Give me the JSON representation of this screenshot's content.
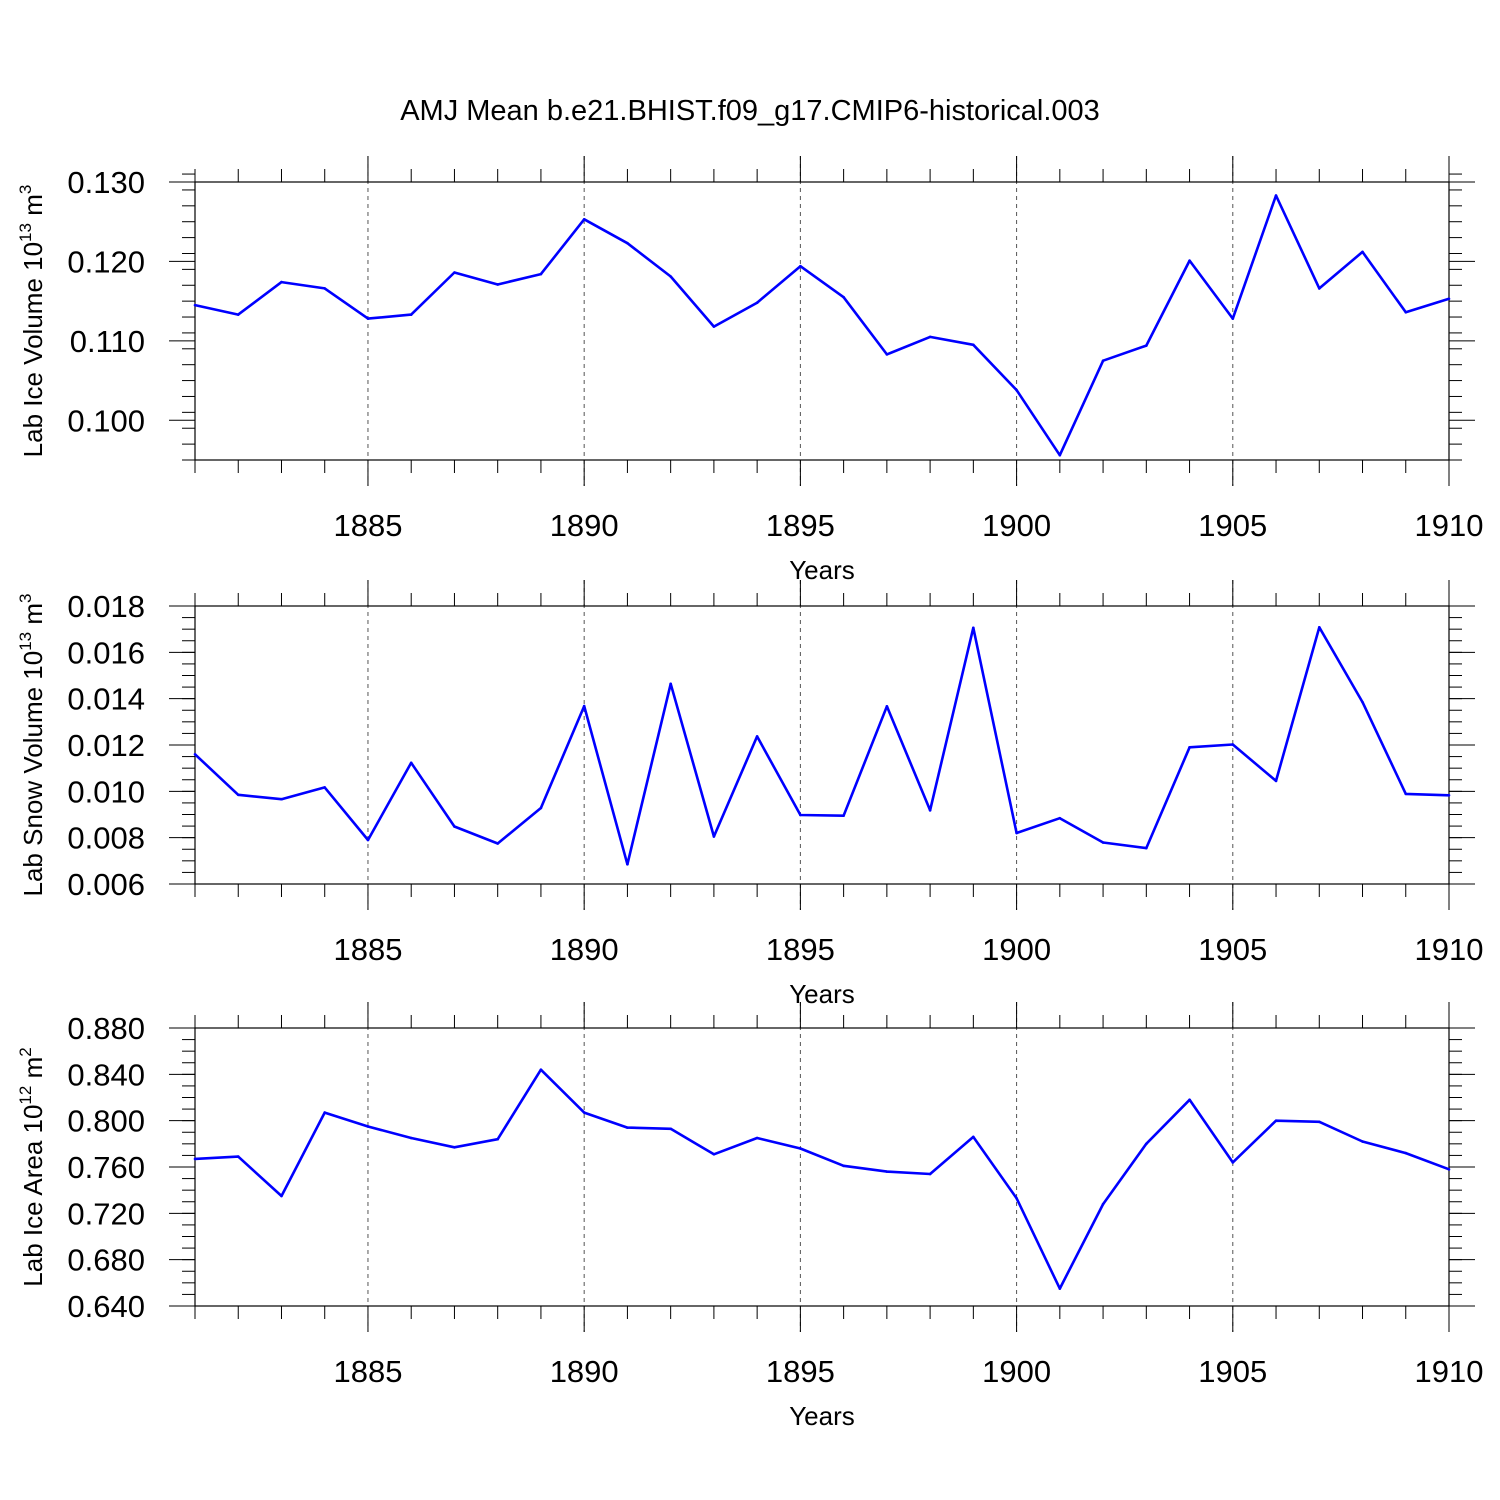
{
  "title": "AMJ Mean b.e21.BHIST.f09_g17.CMIP6-historical.003",
  "chart_data": [
    {
      "type": "line",
      "xlabel": "Years",
      "ylabel": "Lab Ice Volume 10",
      "ylabel_exp": "13",
      "ylabel_unit": " m",
      "ylabel_unit_exp": "3",
      "xlim": [
        1881,
        1910
      ],
      "ylim": [
        0.095,
        0.13
      ],
      "xticks": [
        1885,
        1890,
        1895,
        1900,
        1905,
        1910
      ],
      "xtick_labels": [
        "1885",
        "1890",
        "1895",
        "1900",
        "1905",
        "1910"
      ],
      "yticks": [
        0.1,
        0.11,
        0.12,
        0.13
      ],
      "ytick_labels": [
        "0.100",
        "0.110",
        "0.120",
        "0.130"
      ],
      "y_minor_step": 0.002,
      "vertical_gridlines": "dashed at major x ticks",
      "line_color": "#0000ff",
      "x": [
        1881,
        1882,
        1883,
        1884,
        1885,
        1886,
        1887,
        1888,
        1889,
        1890,
        1891,
        1892,
        1893,
        1894,
        1895,
        1896,
        1897,
        1898,
        1899,
        1900,
        1901,
        1902,
        1903,
        1904,
        1905,
        1906,
        1907,
        1908,
        1909,
        1910
      ],
      "y": [
        0.1145,
        0.1133,
        0.1174,
        0.1166,
        0.1128,
        0.1133,
        0.1186,
        0.1171,
        0.1184,
        0.1253,
        0.1223,
        0.1181,
        0.1118,
        0.1148,
        0.1194,
        0.1155,
        0.1083,
        0.1105,
        0.1095,
        0.1038,
        0.0956,
        0.1075,
        0.1094,
        0.1201,
        0.1128,
        0.1283,
        0.1166,
        0.1212,
        0.1136,
        0.1153
      ]
    },
    {
      "type": "line",
      "xlabel": "Years",
      "ylabel": "Lab Snow Volume 10",
      "ylabel_exp": "13",
      "ylabel_unit": " m",
      "ylabel_unit_exp": "3",
      "xlim": [
        1881,
        1910
      ],
      "ylim": [
        0.006,
        0.018
      ],
      "xticks": [
        1885,
        1890,
        1895,
        1900,
        1905,
        1910
      ],
      "xtick_labels": [
        "1885",
        "1890",
        "1895",
        "1900",
        "1905",
        "1910"
      ],
      "yticks": [
        0.006,
        0.008,
        0.01,
        0.012,
        0.014,
        0.016,
        0.018
      ],
      "ytick_labels": [
        "0.006",
        "0.008",
        "0.010",
        "0.012",
        "0.014",
        "0.016",
        "0.018"
      ],
      "y_minor_step": 0.0005,
      "vertical_gridlines": "dashed at major x ticks",
      "line_color": "#0000ff",
      "x": [
        1881,
        1882,
        1883,
        1884,
        1885,
        1886,
        1887,
        1888,
        1889,
        1890,
        1891,
        1892,
        1893,
        1894,
        1895,
        1896,
        1897,
        1898,
        1899,
        1900,
        1901,
        1902,
        1903,
        1904,
        1905,
        1906,
        1907,
        1908,
        1909,
        1910
      ],
      "y": [
        0.0116,
        0.00985,
        0.00966,
        0.01017,
        0.0079,
        0.01123,
        0.00848,
        0.00775,
        0.00928,
        0.01368,
        0.00685,
        0.01464,
        0.00805,
        0.01237,
        0.00898,
        0.00895,
        0.01367,
        0.00918,
        0.01706,
        0.0082,
        0.00884,
        0.00779,
        0.00755,
        0.0119,
        0.01202,
        0.01045,
        0.01708,
        0.01385,
        0.00989,
        0.00983
      ]
    },
    {
      "type": "line",
      "xlabel": "Years",
      "ylabel": "Lab Ice Area 10",
      "ylabel_exp": "12",
      "ylabel_unit": " m",
      "ylabel_unit_exp": "2",
      "xlim": [
        1881,
        1910
      ],
      "ylim": [
        0.64,
        0.88
      ],
      "xticks": [
        1885,
        1890,
        1895,
        1900,
        1905,
        1910
      ],
      "xtick_labels": [
        "1885",
        "1890",
        "1895",
        "1900",
        "1905",
        "1910"
      ],
      "yticks": [
        0.64,
        0.68,
        0.72,
        0.76,
        0.8,
        0.84,
        0.88
      ],
      "ytick_labels": [
        "0.640",
        "0.680",
        "0.720",
        "0.760",
        "0.800",
        "0.840",
        "0.880"
      ],
      "y_minor_step": 0.01,
      "vertical_gridlines": "dashed at major x ticks",
      "line_color": "#0000ff",
      "x": [
        1881,
        1882,
        1883,
        1884,
        1885,
        1886,
        1887,
        1888,
        1889,
        1890,
        1891,
        1892,
        1893,
        1894,
        1895,
        1896,
        1897,
        1898,
        1899,
        1900,
        1901,
        1902,
        1903,
        1904,
        1905,
        1906,
        1907,
        1908,
        1909,
        1910
      ],
      "y": [
        0.767,
        0.769,
        0.735,
        0.807,
        0.795,
        0.785,
        0.777,
        0.784,
        0.844,
        0.807,
        0.794,
        0.793,
        0.771,
        0.785,
        0.776,
        0.761,
        0.756,
        0.754,
        0.786,
        0.733,
        0.655,
        0.728,
        0.78,
        0.818,
        0.764,
        0.8,
        0.799,
        0.782,
        0.772,
        0.758
      ]
    }
  ]
}
